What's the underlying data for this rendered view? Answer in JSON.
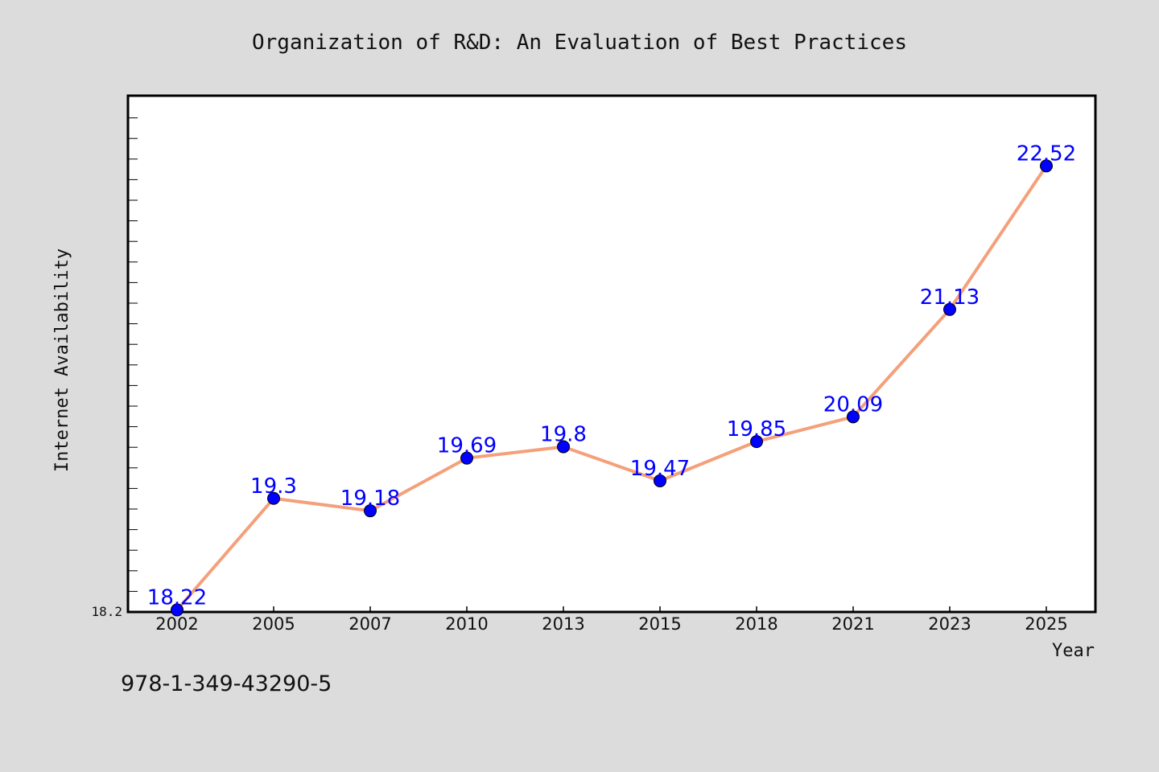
{
  "chart_data": {
    "type": "line",
    "title": "Organization of R&D: An Evaluation of Best Practices",
    "xlabel": "Year",
    "ylabel": "Internet Availability",
    "categories": [
      "2002",
      "2005",
      "2007",
      "2010",
      "2013",
      "2015",
      "2018",
      "2021",
      "2023",
      "2025"
    ],
    "series": [
      {
        "values": [
          18.22,
          19.3,
          19.18,
          19.69,
          19.8,
          19.47,
          19.85,
          20.09,
          21.13,
          22.52
        ],
        "labels": [
          "18.22",
          "19.3",
          "19.18",
          "19.69",
          "19.8",
          "19.47",
          "19.85",
          "20.09",
          "21.13",
          "22.52"
        ]
      }
    ],
    "ylim": [
      18.2,
      23.2
    ],
    "y_tick_labels": [
      "18.2"
    ],
    "grid": false,
    "legend": "none",
    "colors": {
      "background": "#dcdcdc",
      "plot_bg": "#ffffff",
      "line": "#f4a07a",
      "marker": "#0000ff",
      "data_label": "#0000ff",
      "text": "#111111"
    }
  },
  "footer": {
    "code": "978-1-349-43290-5"
  }
}
